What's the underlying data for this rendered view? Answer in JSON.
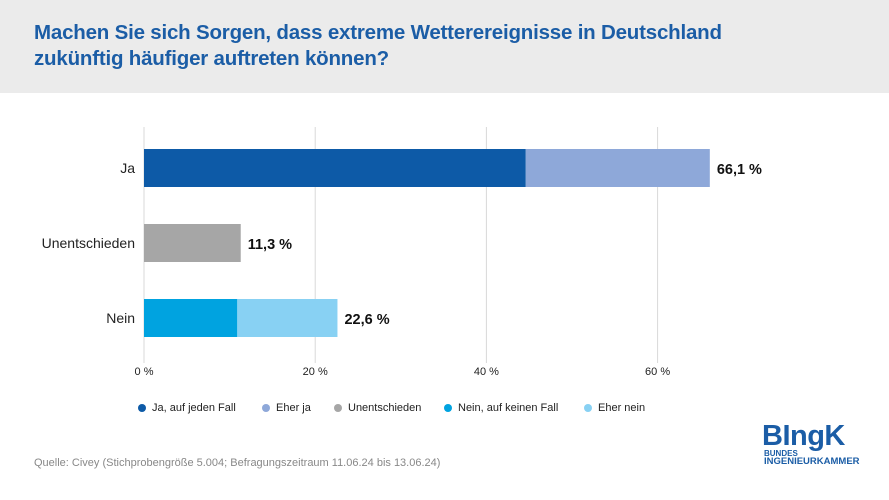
{
  "header": {
    "title": "Machen Sie sich Sorgen, dass extreme Wetterereignisse in Deutschland zukünftig häufiger auftreten können?"
  },
  "chart_data": {
    "type": "bar",
    "orientation": "horizontal",
    "stacked": true,
    "categories": [
      "Ja",
      "Unentschieden",
      "Nein"
    ],
    "series": [
      {
        "name": "Ja, auf jeden Fall",
        "color": "#0d5aa7",
        "values": [
          44.6,
          0,
          0
        ]
      },
      {
        "name": "Eher ja",
        "color": "#8ea8d9",
        "values": [
          21.5,
          0,
          0
        ]
      },
      {
        "name": "Unentschieden",
        "color": "#a6a6a6",
        "values": [
          0,
          11.3,
          0
        ]
      },
      {
        "name": "Nein, auf keinen Fall",
        "color": "#00a3e0",
        "values": [
          0,
          0,
          10.9
        ]
      },
      {
        "name": "Eher nein",
        "color": "#88d1f3",
        "values": [
          0,
          0,
          11.7
        ]
      }
    ],
    "totals": [
      "66,1 %",
      "11,3 %",
      "22,6 %"
    ],
    "xlim": [
      0,
      70
    ],
    "xticks": [
      0,
      20,
      40,
      60
    ],
    "xtick_labels": [
      "0 %",
      "20 %",
      "40 %",
      "60 %"
    ],
    "grid": true,
    "legend_position": "bottom"
  },
  "legend": [
    {
      "label": "Ja, auf jeden Fall",
      "color": "#0d5aa7"
    },
    {
      "label": "Eher ja",
      "color": "#8ea8d9"
    },
    {
      "label": "Unentschieden",
      "color": "#a6a6a6"
    },
    {
      "label": "Nein, auf keinen Fall",
      "color": "#00a3e0"
    },
    {
      "label": "Eher nein",
      "color": "#88d1f3"
    }
  ],
  "footer": {
    "source": "Quelle: Civey (Stichprobengröße 5.004; Befragungszeitraum 11.06.24 bis 13.06.24)"
  },
  "logo": {
    "main": "BIngK",
    "line1": "BUNDES",
    "line2": "INGENIEURKAMMER"
  }
}
